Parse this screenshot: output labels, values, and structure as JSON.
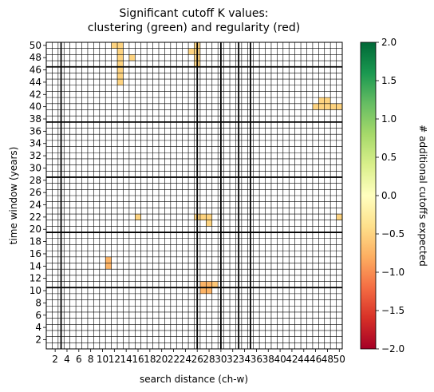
{
  "chart_data": {
    "type": "heatmap",
    "title_lines": [
      "Significant cutoff K values:",
      "clustering (green) and regularity (red)"
    ],
    "xlabel": "search distance (ch-w)",
    "ylabel": "time window (years)",
    "colorbar_label": "# additional cutoffs expected",
    "grid": true,
    "grid_size": 50,
    "x_range": [
      1,
      50
    ],
    "y_range": [
      1,
      50
    ],
    "x_ticks": [
      2,
      4,
      6,
      8,
      10,
      12,
      14,
      16,
      18,
      20,
      22,
      24,
      26,
      28,
      30,
      32,
      34,
      36,
      38,
      40,
      42,
      44,
      46,
      48,
      50
    ],
    "x_tick_labels": [
      "2",
      "4",
      "6",
      "8",
      "10",
      "12",
      "14",
      "16",
      "18",
      "20",
      "22",
      "24",
      "26",
      "28",
      "30",
      "32",
      "34",
      "36",
      "38",
      "40",
      "42",
      "44",
      "46",
      "48",
      "50"
    ],
    "y_ticks": [
      2,
      4,
      6,
      8,
      10,
      12,
      14,
      16,
      18,
      20,
      22,
      24,
      26,
      28,
      30,
      32,
      34,
      36,
      38,
      40,
      42,
      44,
      46,
      48,
      50
    ],
    "y_tick_labels": [
      "2",
      "4",
      "6",
      "8",
      "10",
      "12",
      "14",
      "16",
      "18",
      "20",
      "22",
      "24",
      "26",
      "28",
      "30",
      "32",
      "34",
      "36",
      "38",
      "40",
      "42",
      "44",
      "46",
      "48",
      "50"
    ],
    "colorbar_range": [
      -2.0,
      2.0
    ],
    "colorbar_ticks": [
      -2.0,
      -1.5,
      -1.0,
      -0.5,
      0.0,
      0.5,
      1.0,
      1.5,
      2.0
    ],
    "colorbar_tick_labels": [
      "−2.0",
      "−1.5",
      "−1.0",
      "−0.5",
      "0.0",
      "0.5",
      "1.0",
      "1.5",
      "2.0"
    ],
    "colormap": [
      "#a50026",
      "#d73027",
      "#f46d43",
      "#fdae61",
      "#fee08b",
      "#ffffbf",
      "#d9ef8b",
      "#a6d96a",
      "#66bd63",
      "#1a9850",
      "#006837"
    ],
    "grid_line_color": "#000000",
    "thick_lines_x": [
      3,
      26,
      30,
      33,
      35
    ],
    "thick_lines_y": [
      10.5,
      19.5,
      28.5,
      37.5,
      46.5
    ],
    "cells": [
      {
        "x": 12,
        "y": 50,
        "value": -0.5
      },
      {
        "x": 13,
        "y": 50,
        "value": -0.5
      },
      {
        "x": 13,
        "y": 49,
        "value": -0.5
      },
      {
        "x": 13,
        "y": 48,
        "value": -0.5
      },
      {
        "x": 13,
        "y": 47,
        "value": -0.5
      },
      {
        "x": 13,
        "y": 46,
        "value": -0.5
      },
      {
        "x": 13,
        "y": 45,
        "value": -0.5
      },
      {
        "x": 13,
        "y": 44,
        "value": -0.5
      },
      {
        "x": 15,
        "y": 48,
        "value": -0.5
      },
      {
        "x": 25,
        "y": 49,
        "value": -0.5
      },
      {
        "x": 26,
        "y": 50,
        "value": -0.5
      },
      {
        "x": 26,
        "y": 49,
        "value": -0.5
      },
      {
        "x": 26,
        "y": 48,
        "value": -0.5
      },
      {
        "x": 26,
        "y": 47,
        "value": -0.5
      },
      {
        "x": 47,
        "y": 41,
        "value": -0.5
      },
      {
        "x": 48,
        "y": 41,
        "value": -0.5
      },
      {
        "x": 46,
        "y": 40,
        "value": -0.5
      },
      {
        "x": 47,
        "y": 40,
        "value": -0.5
      },
      {
        "x": 48,
        "y": 40,
        "value": -0.5
      },
      {
        "x": 49,
        "y": 40,
        "value": -0.5
      },
      {
        "x": 50,
        "y": 40,
        "value": -0.5
      },
      {
        "x": 16,
        "y": 22,
        "value": -0.5
      },
      {
        "x": 26,
        "y": 22,
        "value": -0.5
      },
      {
        "x": 27,
        "y": 22,
        "value": -0.5
      },
      {
        "x": 28,
        "y": 22,
        "value": -0.5
      },
      {
        "x": 28,
        "y": 21,
        "value": -0.5
      },
      {
        "x": 50,
        "y": 22,
        "value": -0.5
      },
      {
        "x": 11,
        "y": 15,
        "value": -0.75
      },
      {
        "x": 11,
        "y": 14,
        "value": -0.75
      },
      {
        "x": 27,
        "y": 11,
        "value": -0.75
      },
      {
        "x": 28,
        "y": 11,
        "value": -0.75
      },
      {
        "x": 29,
        "y": 11,
        "value": -0.6
      },
      {
        "x": 27,
        "y": 10,
        "value": -0.75
      },
      {
        "x": 28,
        "y": 10,
        "value": -0.75
      }
    ]
  }
}
